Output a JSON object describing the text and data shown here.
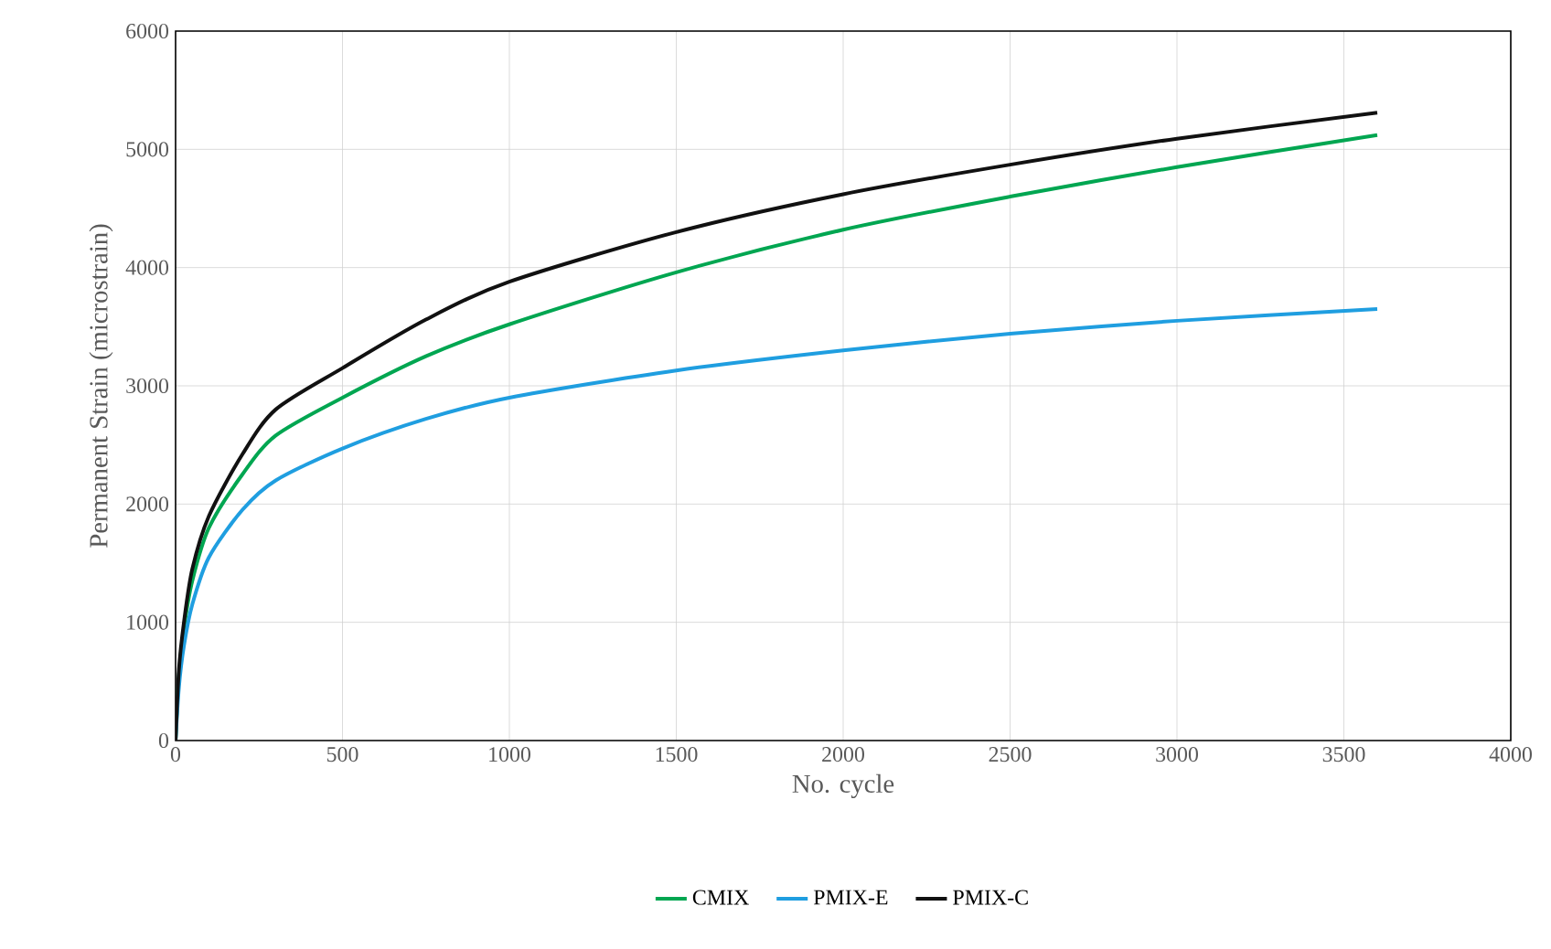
{
  "chart_data": {
    "type": "line",
    "xlabel": "No. cycle",
    "ylabel": "Permanent Strain (microstrain)",
    "xlim": [
      0,
      4000
    ],
    "ylim": [
      0,
      6000
    ],
    "xticks": [
      0,
      500,
      1000,
      1500,
      2000,
      2500,
      3000,
      3500,
      4000
    ],
    "yticks": [
      0,
      1000,
      2000,
      3000,
      4000,
      5000,
      6000
    ],
    "grid": true,
    "legend": "bottom",
    "marker": "none",
    "line_style": "solid",
    "series": [
      {
        "name": "CMIX",
        "color": "#00a651",
        "x": [
          0,
          10,
          25,
          50,
          100,
          200,
          300,
          500,
          750,
          1000,
          1500,
          2000,
          2500,
          3000,
          3600
        ],
        "values": [
          0,
          550,
          950,
          1350,
          1800,
          2250,
          2580,
          2900,
          3250,
          3520,
          3960,
          4320,
          4600,
          4850,
          5120
        ]
      },
      {
        "name": "PMIX-E",
        "color": "#1f9ee0",
        "x": [
          0,
          10,
          25,
          50,
          100,
          200,
          300,
          500,
          750,
          1000,
          1500,
          2000,
          2500,
          3000,
          3600
        ],
        "values": [
          0,
          450,
          800,
          1150,
          1550,
          1950,
          2200,
          2470,
          2720,
          2900,
          3130,
          3300,
          3440,
          3550,
          3650
        ]
      },
      {
        "name": "PMIX-C",
        "color": "#111111",
        "x": [
          0,
          10,
          25,
          50,
          100,
          200,
          300,
          500,
          750,
          1000,
          1500,
          2000,
          2500,
          3000,
          3600
        ],
        "values": [
          0,
          600,
          1000,
          1450,
          1900,
          2420,
          2800,
          3150,
          3560,
          3880,
          4300,
          4620,
          4870,
          5090,
          5310
        ]
      }
    ]
  }
}
